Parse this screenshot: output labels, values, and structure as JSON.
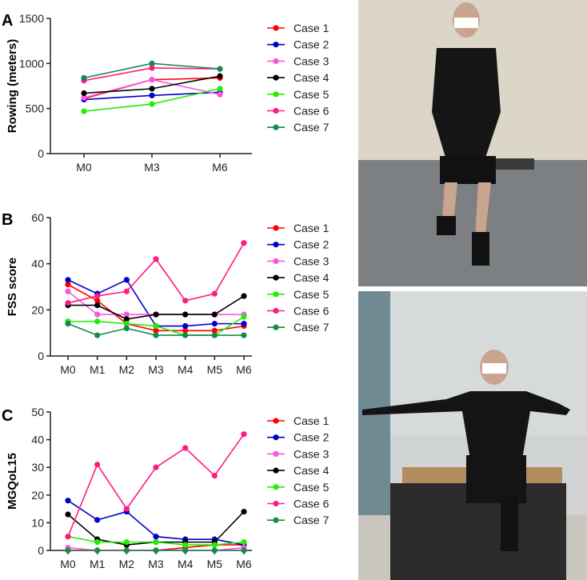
{
  "chart_data": [
    {
      "type": "line",
      "panel_label": "A",
      "ylabel": "Rowing (meters)",
      "categories": [
        "M0",
        "M3",
        "M6"
      ],
      "ylim": [
        0,
        1500
      ],
      "yticks": [
        0,
        500,
        1000,
        1500
      ],
      "legend_position": "right",
      "series": [
        {
          "name": "Case 1",
          "color": "#ff0000",
          "values": [
            610,
            820,
            840
          ]
        },
        {
          "name": "Case 2",
          "color": "#0000cc",
          "values": [
            600,
            645,
            680
          ]
        },
        {
          "name": "Case 3",
          "color": "#ff55dd",
          "values": [
            620,
            820,
            655
          ]
        },
        {
          "name": "Case 4",
          "color": "#000000",
          "values": [
            670,
            720,
            860
          ]
        },
        {
          "name": "Case 5",
          "color": "#22ee00",
          "values": [
            470,
            550,
            720
          ]
        },
        {
          "name": "Case 6",
          "color": "#ff1a80",
          "values": [
            810,
            950,
            940
          ]
        },
        {
          "name": "Case 7",
          "color": "#178a4a",
          "values": [
            840,
            1000,
            940
          ]
        }
      ]
    },
    {
      "type": "line",
      "panel_label": "B",
      "ylabel": "FSS score",
      "categories": [
        "M0",
        "M1",
        "M2",
        "M3",
        "M4",
        "M5",
        "M6"
      ],
      "ylim": [
        0,
        60
      ],
      "yticks": [
        0,
        20,
        40,
        60
      ],
      "legend_position": "right",
      "series": [
        {
          "name": "Case 1",
          "color": "#ff0000",
          "values": [
            31,
            24,
            14,
            11,
            11,
            11,
            13
          ]
        },
        {
          "name": "Case 2",
          "color": "#0000cc",
          "values": [
            33,
            27,
            33,
            13,
            13,
            14,
            14
          ]
        },
        {
          "name": "Case 3",
          "color": "#ff55dd",
          "values": [
            28,
            18,
            18,
            18,
            18,
            18,
            18
          ]
        },
        {
          "name": "Case 4",
          "color": "#000000",
          "values": [
            22,
            22,
            16,
            18,
            18,
            18,
            26
          ]
        },
        {
          "name": "Case 5",
          "color": "#22ee00",
          "values": [
            15,
            15,
            14,
            13,
            9,
            9,
            17
          ]
        },
        {
          "name": "Case 6",
          "color": "#ff1a80",
          "values": [
            23,
            26,
            28,
            42,
            24,
            27,
            49
          ]
        },
        {
          "name": "Case 7",
          "color": "#178a4a",
          "values": [
            14,
            9,
            12,
            9,
            9,
            9,
            9
          ]
        }
      ]
    },
    {
      "type": "line",
      "panel_label": "C",
      "ylabel": "MGQoL15",
      "categories": [
        "M0",
        "M1",
        "M2",
        "M3",
        "M4",
        "M5",
        "M6"
      ],
      "ylim": [
        0,
        50
      ],
      "yticks": [
        0,
        10,
        20,
        30,
        40,
        50
      ],
      "legend_position": "right",
      "series": [
        {
          "name": "Case 1",
          "color": "#ff0000",
          "values": [
            0,
            0,
            0,
            0,
            1,
            2,
            2
          ]
        },
        {
          "name": "Case 2",
          "color": "#0000cc",
          "values": [
            18,
            11,
            14,
            5,
            4,
            4,
            2
          ]
        },
        {
          "name": "Case 3",
          "color": "#ff55dd",
          "values": [
            1,
            0,
            0,
            0,
            0,
            0,
            1
          ]
        },
        {
          "name": "Case 4",
          "color": "#000000",
          "values": [
            13,
            4,
            2,
            3,
            3,
            3,
            14
          ]
        },
        {
          "name": "Case 5",
          "color": "#22ee00",
          "values": [
            5,
            3,
            3,
            3,
            2,
            2,
            3
          ]
        },
        {
          "name": "Case 6",
          "color": "#ff1a80",
          "values": [
            5,
            31,
            15,
            30,
            37,
            27,
            42
          ]
        },
        {
          "name": "Case 7",
          "color": "#178a4a",
          "values": [
            0,
            0,
            0,
            0,
            0,
            0,
            0
          ]
        }
      ]
    }
  ]
}
